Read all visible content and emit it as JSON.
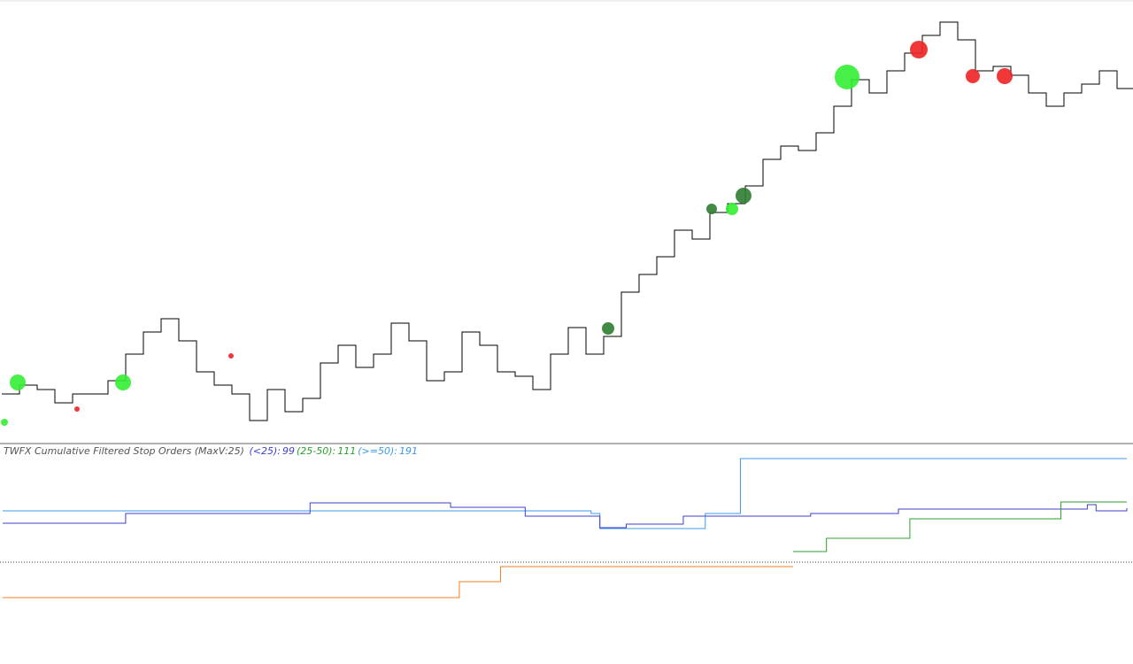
{
  "price_panel": {
    "type": "step",
    "color": "#000000",
    "xlim": [
      0,
      64
    ],
    "ylim": [
      0,
      100
    ],
    "values": [
      11,
      13,
      12,
      9,
      11,
      11,
      14,
      20,
      25,
      28,
      23,
      16,
      13,
      11,
      5,
      12,
      7,
      10,
      18,
      22,
      17,
      20,
      27,
      23,
      14,
      16,
      25,
      22,
      16,
      15,
      12,
      20,
      26,
      20,
      24,
      34,
      38,
      42,
      48,
      46,
      52,
      54,
      58,
      64,
      67,
      66,
      70,
      76,
      82,
      79,
      84,
      88,
      92,
      95,
      91,
      84,
      85,
      83,
      79,
      76,
      79,
      81,
      84,
      80
    ],
    "bubbles": {
      "x": [
        0.15,
        0.9,
        4.25,
        6.85,
        12.95,
        34.25,
        40.1,
        41.25,
        41.9,
        47.75,
        51.8,
        54.85,
        56.65
      ],
      "values": [
        4.6,
        13.6,
        7.6,
        13.6,
        19.6,
        25.8,
        52.8,
        52.8,
        55.8,
        82.6,
        88.8,
        82.8,
        82.8
      ],
      "sizes": [
        4,
        9,
        3,
        9,
        3,
        7,
        6,
        7,
        9,
        14,
        10,
        8,
        9
      ],
      "colors": [
        "#33ee33",
        "#33ee33",
        "#ee2222",
        "#33ee33",
        "#ee2222",
        "#2e7d32",
        "#2e7d32",
        "#33ee33",
        "#2e7d32",
        "#33ee33",
        "#ee2222",
        "#ee2222",
        "#ee2222"
      ]
    }
  },
  "indicator_panel": {
    "type": "step",
    "title": "TWFX Cumulative Filtered Stop Orders (MaxV:25)",
    "xlim": [
      0,
      128
    ],
    "ylim": [
      -115,
      133
    ],
    "baseline": 0,
    "legend": [
      {
        "label": "(<25):",
        "value": 99,
        "color": "#3f3fd0"
      },
      {
        "label": "(25-50):",
        "value": 111,
        "color": "#2ca02c"
      },
      {
        "label": "(>=50):",
        "value": 191,
        "color": "#3b9ae8"
      }
    ],
    "series": [
      {
        "color": "#3b9ae8",
        "x": [
          0,
          67,
          68,
          80,
          84,
          128
        ],
        "values": [
          58,
          55,
          38,
          55,
          117,
          117
        ]
      },
      {
        "color": "#3f3fd0",
        "x": [
          0,
          14,
          35,
          51,
          59.5,
          68,
          71,
          77.5,
          92,
          102,
          123.5,
          124.5,
          128
        ],
        "values": [
          44,
          55,
          67,
          62,
          52,
          39,
          43,
          52,
          55,
          60,
          65,
          58,
          61
        ]
      },
      {
        "color": "#2ca02c",
        "x": [
          90,
          93.8,
          103.3,
          120.5,
          128
        ],
        "values": [
          12,
          27,
          49,
          68,
          68
        ]
      },
      {
        "color": "#f08020",
        "x": [
          0,
          52,
          56.7,
          90
        ],
        "values": [
          -40,
          -22,
          -5,
          -5
        ]
      }
    ]
  }
}
